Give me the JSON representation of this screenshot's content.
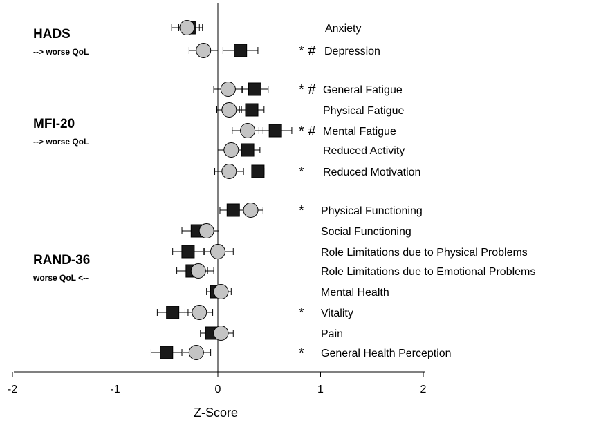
{
  "chart_data": {
    "type": "scatter",
    "xlabel": "Z-Score",
    "xlim": [
      -2,
      2
    ],
    "xticks": [
      "-2",
      "-1",
      "0",
      "1",
      "2"
    ],
    "grid": false,
    "groups": [
      {
        "title": "HADS",
        "subtitle": "--> worse QoL"
      },
      {
        "title": "MFI-20",
        "subtitle": "--> worse QoL"
      },
      {
        "title": "RAND-36",
        "subtitle": "worse QoL <--"
      }
    ],
    "rows": [
      {
        "label": "Anxiety",
        "group": "HADS",
        "marks": "",
        "square": {
          "x": -0.28,
          "lo": -0.38,
          "hi": -0.18
        },
        "circle": {
          "x": -0.3,
          "lo": -0.45,
          "hi": -0.15
        }
      },
      {
        "label": "Depression",
        "group": "HADS",
        "marks": "* #",
        "square": {
          "x": 0.22,
          "lo": 0.05,
          "hi": 0.39
        },
        "circle": {
          "x": -0.14,
          "lo": -0.28,
          "hi": 0.0
        }
      },
      {
        "label": "General Fatigue",
        "group": "MFI-20",
        "marks": "* #",
        "square": {
          "x": 0.36,
          "lo": 0.23,
          "hi": 0.49
        },
        "circle": {
          "x": 0.1,
          "lo": -0.04,
          "hi": 0.24
        }
      },
      {
        "label": "Physical Fatigue",
        "group": "MFI-20",
        "marks": "",
        "square": {
          "x": 0.33,
          "lo": 0.21,
          "hi": 0.45
        },
        "circle": {
          "x": 0.11,
          "lo": -0.01,
          "hi": 0.23
        }
      },
      {
        "label": "Mental Fatigue",
        "group": "MFI-20",
        "marks": "* #",
        "square": {
          "x": 0.56,
          "lo": 0.4,
          "hi": 0.72
        },
        "circle": {
          "x": 0.29,
          "lo": 0.14,
          "hi": 0.44
        }
      },
      {
        "label": "Reduced Activity",
        "group": "MFI-20",
        "marks": "",
        "square": {
          "x": 0.29,
          "lo": 0.17,
          "hi": 0.41
        },
        "circle": {
          "x": 0.13,
          "lo": 0.0,
          "hi": 0.26
        }
      },
      {
        "label": "Reduced Motivation",
        "group": "MFI-20",
        "marks": "*",
        "square": {
          "x": 0.39,
          "lo": 0.33,
          "hi": 0.45
        },
        "circle": {
          "x": 0.11,
          "lo": -0.03,
          "hi": 0.25
        }
      },
      {
        "label": "Physical Functioning",
        "group": "RAND-36",
        "marks": "*",
        "square": {
          "x": 0.15,
          "lo": 0.02,
          "hi": 0.28
        },
        "circle": {
          "x": 0.32,
          "lo": 0.2,
          "hi": 0.44
        }
      },
      {
        "label": "Social Functioning",
        "group": "RAND-36",
        "marks": "",
        "square": {
          "x": -0.2,
          "lo": -0.35,
          "hi": -0.05
        },
        "circle": {
          "x": -0.11,
          "lo": -0.21,
          "hi": 0.01
        }
      },
      {
        "label": "Role Limitations due to Physical Problems",
        "group": "RAND-36",
        "marks": "",
        "square": {
          "x": -0.29,
          "lo": -0.44,
          "hi": -0.14
        },
        "circle": {
          "x": 0.0,
          "lo": -0.13,
          "hi": 0.15
        }
      },
      {
        "label": "Role Limitations due to Emotional Problems",
        "group": "RAND-36",
        "marks": "",
        "square": {
          "x": -0.25,
          "lo": -0.4,
          "hi": -0.1
        },
        "circle": {
          "x": -0.19,
          "lo": -0.32,
          "hi": -0.04
        }
      },
      {
        "label": "Mental Health",
        "group": "RAND-36",
        "marks": "",
        "square": {
          "x": -0.01,
          "lo": -0.11,
          "hi": 0.09
        },
        "circle": {
          "x": 0.03,
          "lo": -0.07,
          "hi": 0.13
        }
      },
      {
        "label": "Vitality",
        "group": "RAND-36",
        "marks": "*",
        "square": {
          "x": -0.44,
          "lo": -0.59,
          "hi": -0.29
        },
        "circle": {
          "x": -0.18,
          "lo": -0.32,
          "hi": -0.05
        }
      },
      {
        "label": "Pain",
        "group": "RAND-36",
        "marks": "",
        "square": {
          "x": -0.06,
          "lo": -0.17,
          "hi": 0.05
        },
        "circle": {
          "x": 0.03,
          "lo": -0.09,
          "hi": 0.15
        }
      },
      {
        "label": "General Health Perception",
        "group": "RAND-36",
        "marks": "*",
        "square": {
          "x": -0.5,
          "lo": -0.65,
          "hi": -0.35
        },
        "circle": {
          "x": -0.21,
          "lo": -0.34,
          "hi": -0.07
        }
      }
    ],
    "colors": {
      "square": "#1a1a1a",
      "circle": "#c4c4c4"
    }
  }
}
